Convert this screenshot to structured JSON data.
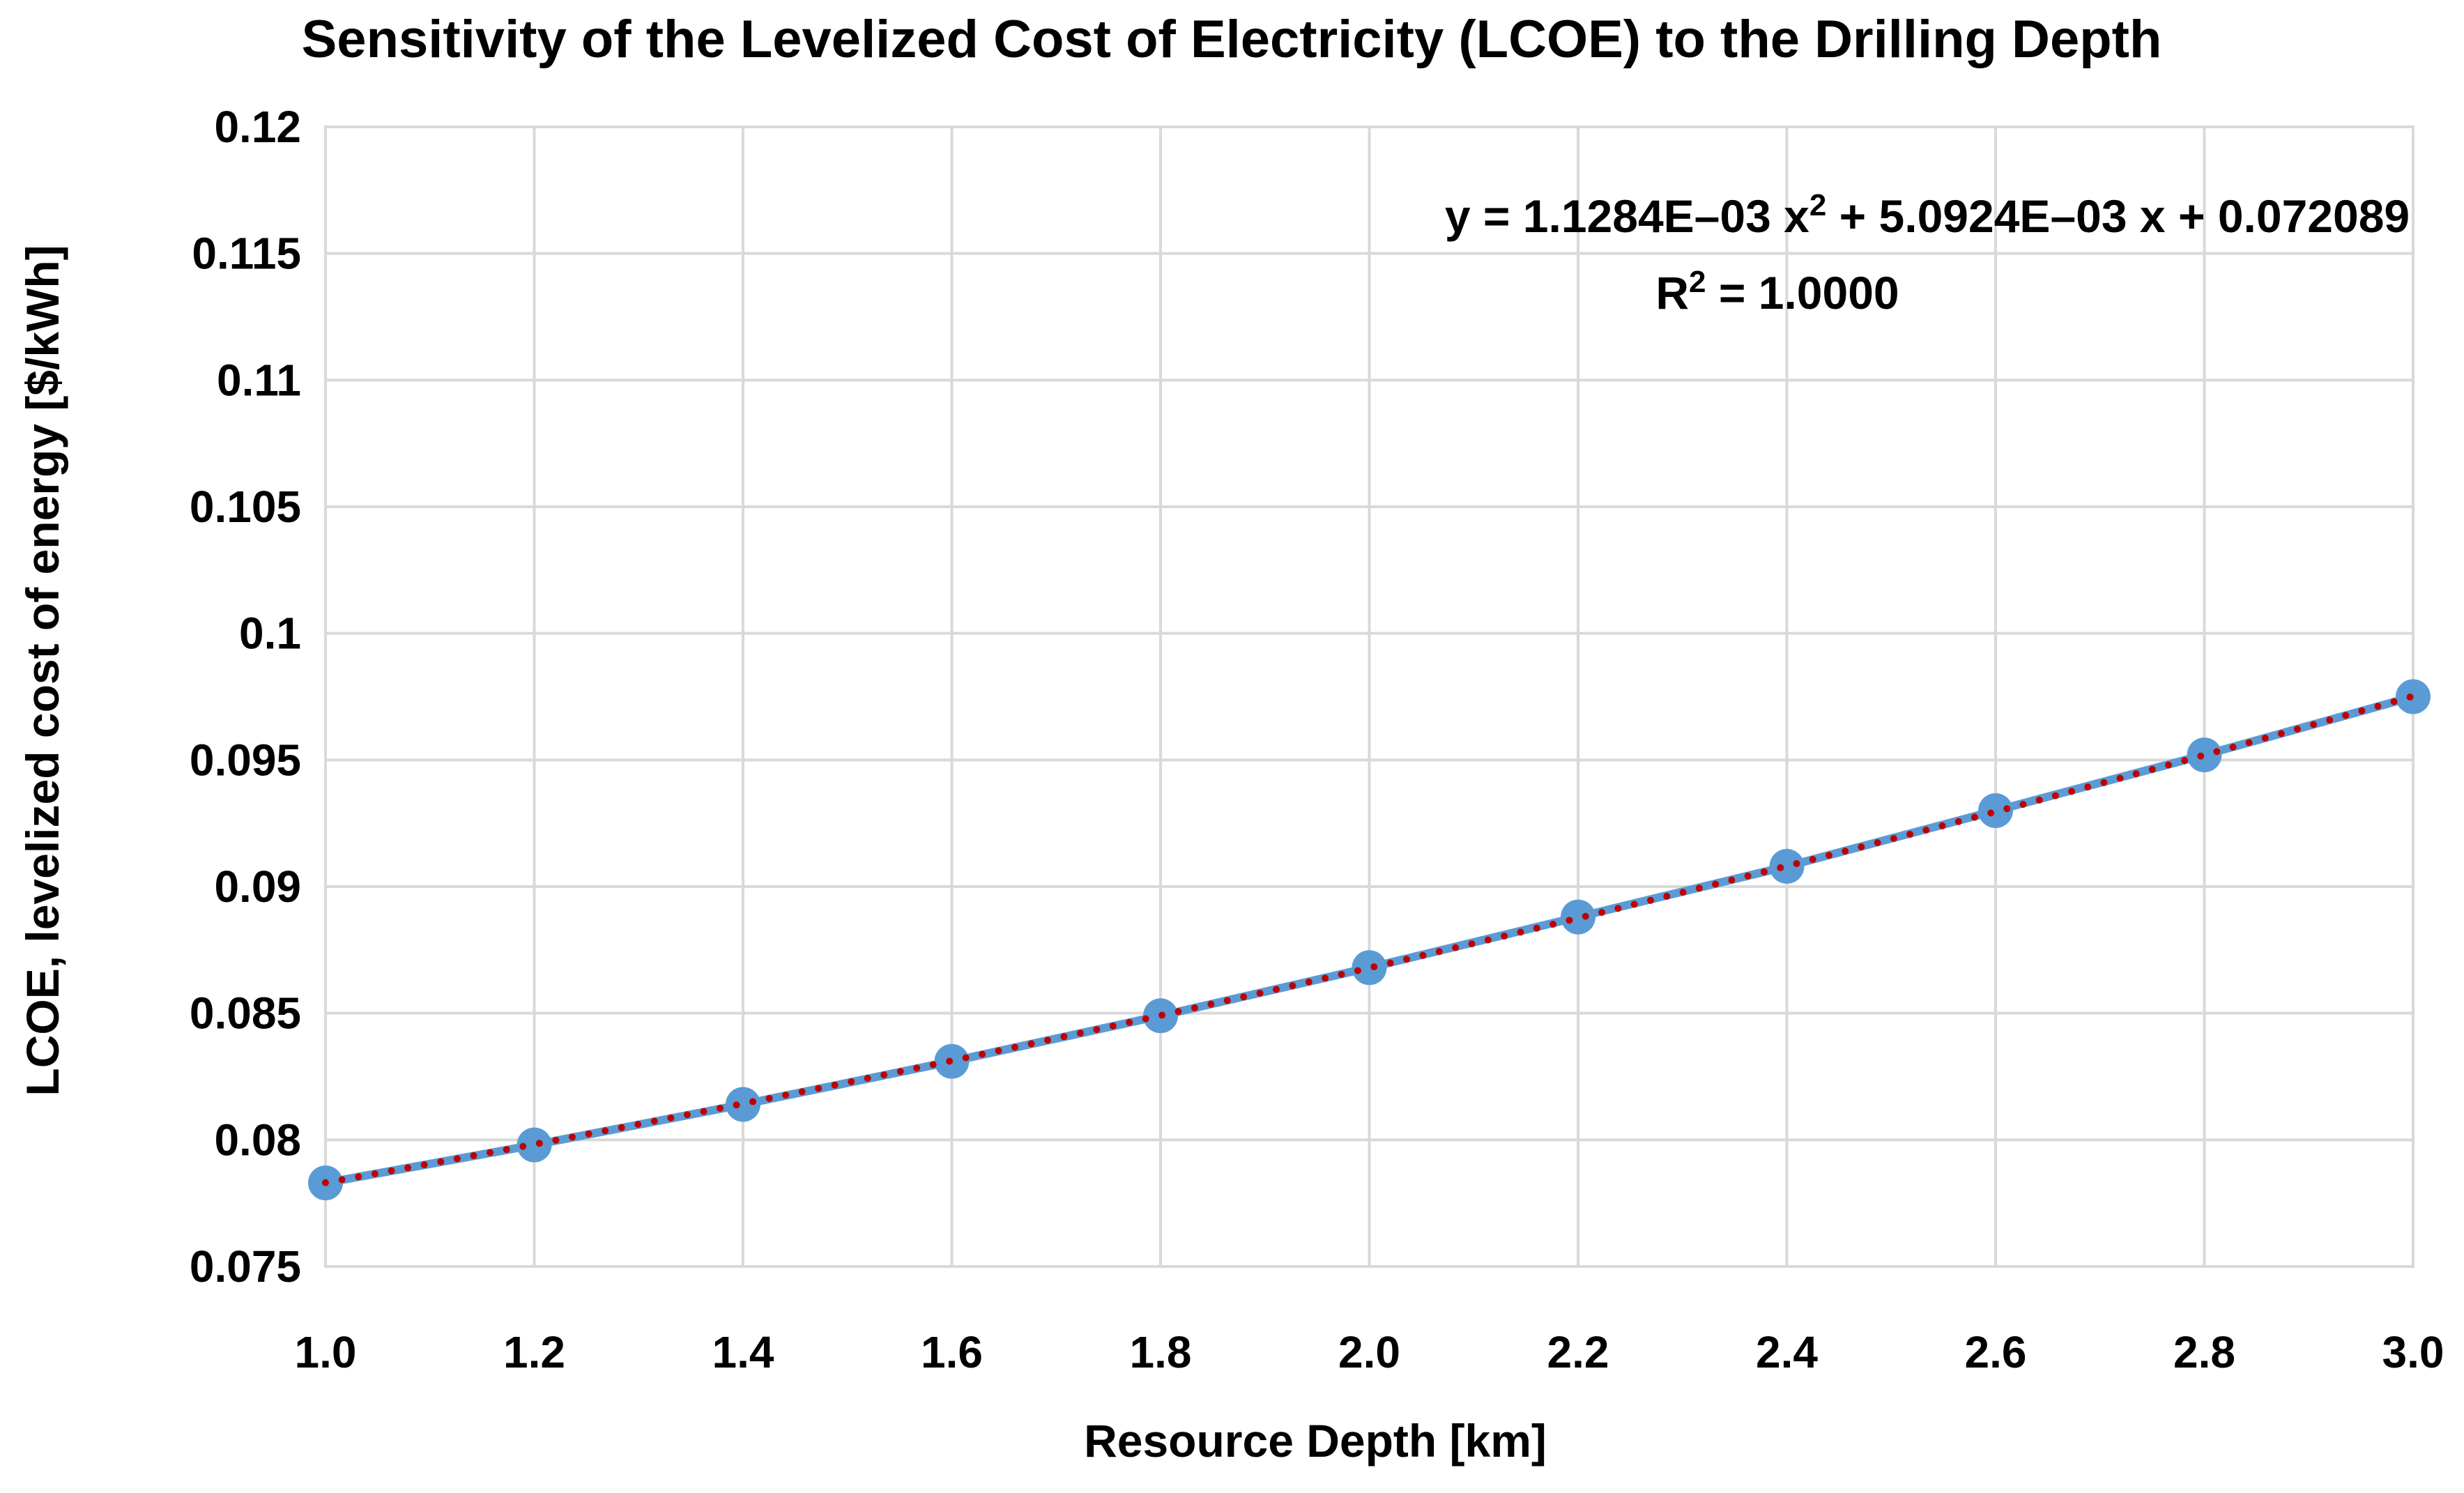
{
  "chart_data": {
    "type": "scatter",
    "title": "Sensitivity of the Levelized Cost of Electricity (LCOE) to the Drilling Depth",
    "xlabel": "Resource Depth [km]",
    "ylabel": "LCOE, levelized cost of energy [$/kWh]",
    "xlim": [
      1.0,
      3.0
    ],
    "ylim": [
      0.075,
      0.12
    ],
    "x_ticks": [
      "1.0",
      "1.2",
      "1.4",
      "1.6",
      "1.8",
      "2.0",
      "2.2",
      "2.4",
      "2.6",
      "2.8",
      "3.0"
    ],
    "y_ticks": [
      "0.075",
      "0.08",
      "0.085",
      "0.09",
      "0.095",
      "0.1",
      "0.105",
      "0.11",
      "0.115",
      "0.12"
    ],
    "grid": true,
    "legend": "none",
    "series": [
      {
        "marker": "circle",
        "line": "solid",
        "color": "#5B9BD5",
        "x": [
          1.0,
          1.2,
          1.4,
          1.6,
          1.8,
          2.0,
          2.2,
          2.4,
          2.6,
          2.8,
          3.0
        ],
        "y": [
          0.0783,
          0.0798,
          0.0814,
          0.0831,
          0.0849,
          0.0868,
          0.0888,
          0.0908,
          0.093,
          0.0952,
          0.0975
        ]
      }
    ],
    "trendline": {
      "type": "polynomial",
      "order": 2,
      "style": "dotted",
      "color": "#C00000",
      "coefficients": {
        "a": 0.0011284,
        "b": 0.0050924,
        "c": 0.072089
      },
      "equation_text": {
        "prefix": "y = 1.1284E–03 x",
        "sup": "2",
        "suffix": " + 5.0924E–03 x + 0.072089"
      },
      "r2_text": {
        "prefix": "R",
        "sup": "2",
        "suffix": " = 1.0000"
      }
    }
  }
}
